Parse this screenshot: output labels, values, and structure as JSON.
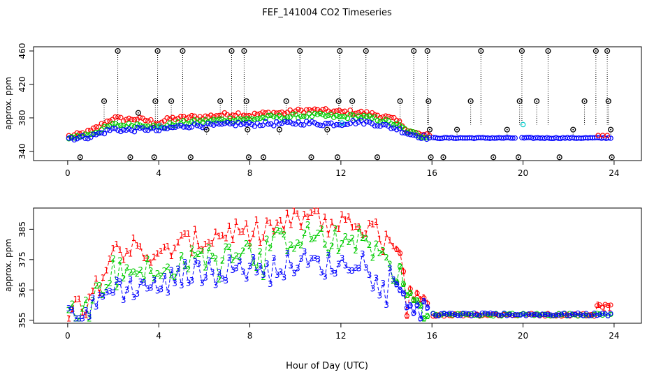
{
  "title": "FEF_141004  CO2 Timeseries",
  "xlabel": "Hour of Day (UTC)",
  "colors": {
    "series1": "#ff0000",
    "series2": "#00cc00",
    "series3": "#0000ff",
    "cyan": "#00cccc",
    "flag": "#000000"
  },
  "chart_data": [
    {
      "type": "scatter",
      "panel": "top",
      "ylabel": "approx. ppm",
      "xlim": [
        -1.5,
        25.2
      ],
      "ylim": [
        329,
        465
      ],
      "xticks": [
        0,
        4,
        8,
        12,
        16,
        20,
        24
      ],
      "yticks": [
        340,
        380,
        420,
        460
      ],
      "ytick_labels": [
        "340",
        "380",
        "420",
        "460"
      ],
      "xtick_labels": [
        "0",
        "4",
        "8",
        "12",
        "16",
        "20",
        "24"
      ],
      "grid": false,
      "legend": "none",
      "series_values": {
        "day_hours": [
          0.1,
          0.5,
          1.0,
          1.5,
          2.0,
          2.5,
          3.0,
          3.5,
          4.0,
          4.5,
          5.0,
          5.5,
          6.0,
          6.5,
          7.0,
          7.5,
          8.0,
          8.5,
          9.0,
          9.5,
          10.0,
          10.5,
          11.0,
          11.5,
          12.0,
          12.5,
          13.0,
          13.5,
          14.0,
          14.5,
          15.0,
          15.5,
          15.9
        ],
        "red": [
          358,
          360,
          364,
          372,
          380,
          378,
          379,
          377,
          374,
          379,
          380,
          381,
          381,
          383,
          384,
          385,
          383,
          385,
          386,
          386,
          388,
          389,
          389,
          388,
          387,
          387,
          386,
          384,
          381,
          376,
          364,
          360,
          358
        ],
        "green": [
          357,
          358,
          361,
          366,
          372,
          371,
          372,
          372,
          368,
          372,
          374,
          375,
          376,
          377,
          378,
          379,
          378,
          380,
          381,
          381,
          382,
          383,
          383,
          382,
          381,
          382,
          381,
          379,
          376,
          371,
          363,
          359,
          357
        ],
        "blue": [
          356,
          356,
          358,
          362,
          367,
          365,
          366,
          367,
          365,
          368,
          370,
          371,
          371,
          371,
          372,
          373,
          372,
          373,
          373,
          373,
          374,
          374,
          373,
          373,
          373,
          375,
          375,
          373,
          370,
          367,
          361,
          358,
          356
        ],
        "night_level": 356
      },
      "flag_points": [
        {
          "x": 0.55,
          "y": 333
        },
        {
          "x": 1.6,
          "y": 400
        },
        {
          "x": 2.2,
          "y": 460
        },
        {
          "x": 2.75,
          "y": 333
        },
        {
          "x": 3.1,
          "y": 386
        },
        {
          "x": 3.8,
          "y": 333
        },
        {
          "x": 3.85,
          "y": 400
        },
        {
          "x": 3.95,
          "y": 460
        },
        {
          "x": 4.55,
          "y": 400
        },
        {
          "x": 5.05,
          "y": 460
        },
        {
          "x": 5.4,
          "y": 333
        },
        {
          "x": 6.1,
          "y": 366
        },
        {
          "x": 6.7,
          "y": 400
        },
        {
          "x": 7.2,
          "y": 460
        },
        {
          "x": 7.75,
          "y": 460
        },
        {
          "x": 7.85,
          "y": 400
        },
        {
          "x": 7.9,
          "y": 366
        },
        {
          "x": 7.95,
          "y": 333
        },
        {
          "x": 8.6,
          "y": 333
        },
        {
          "x": 9.3,
          "y": 366
        },
        {
          "x": 9.6,
          "y": 400
        },
        {
          "x": 10.2,
          "y": 460
        },
        {
          "x": 10.7,
          "y": 333
        },
        {
          "x": 11.4,
          "y": 366
        },
        {
          "x": 11.9,
          "y": 400
        },
        {
          "x": 11.95,
          "y": 460
        },
        {
          "x": 11.85,
          "y": 333
        },
        {
          "x": 12.5,
          "y": 400
        },
        {
          "x": 13.1,
          "y": 460
        },
        {
          "x": 13.6,
          "y": 333
        },
        {
          "x": 14.6,
          "y": 400
        },
        {
          "x": 15.2,
          "y": 460
        },
        {
          "x": 15.8,
          "y": 460
        },
        {
          "x": 15.85,
          "y": 400
        },
        {
          "x": 15.9,
          "y": 366
        },
        {
          "x": 15.95,
          "y": 333
        },
        {
          "x": 16.5,
          "y": 333
        },
        {
          "x": 17.1,
          "y": 366
        },
        {
          "x": 17.7,
          "y": 400
        },
        {
          "x": 18.15,
          "y": 460
        },
        {
          "x": 18.7,
          "y": 333
        },
        {
          "x": 19.3,
          "y": 366
        },
        {
          "x": 19.85,
          "y": 400
        },
        {
          "x": 19.95,
          "y": 460
        },
        {
          "x": 19.8,
          "y": 333
        },
        {
          "x": 20.6,
          "y": 400
        },
        {
          "x": 21.1,
          "y": 460
        },
        {
          "x": 21.6,
          "y": 333
        },
        {
          "x": 22.2,
          "y": 366
        },
        {
          "x": 22.7,
          "y": 400
        },
        {
          "x": 23.2,
          "y": 460
        },
        {
          "x": 23.7,
          "y": 460
        },
        {
          "x": 23.75,
          "y": 400
        },
        {
          "x": 23.85,
          "y": 366
        },
        {
          "x": 23.9,
          "y": 333
        }
      ],
      "cyan_points": [
        {
          "x": 20.0,
          "y": 372
        },
        {
          "x": 12.05,
          "y": 374
        },
        {
          "x": 4.05,
          "y": 371
        }
      ]
    },
    {
      "type": "line",
      "panel": "bottom",
      "ylabel": "approx. ppm",
      "xlim": [
        -1.5,
        25.2
      ],
      "ylim": [
        354,
        392
      ],
      "xticks": [
        0,
        4,
        8,
        12,
        16,
        20,
        24
      ],
      "xtick_labels": [
        "0",
        "4",
        "8",
        "12",
        "16",
        "20",
        "24"
      ],
      "yticks": [
        355,
        365,
        375,
        385
      ],
      "ytick_labels": [
        "355",
        "365",
        "375",
        "385"
      ],
      "grid": false,
      "legend": "none",
      "series": [
        {
          "label": "1",
          "color": "#ff0000"
        },
        {
          "label": "2",
          "color": "#00cc00"
        },
        {
          "label": "3",
          "color": "#0000ff"
        }
      ],
      "tail_points": {
        "x": [
          23.3,
          23.55,
          23.8
        ],
        "y": [
          360,
          359,
          359
        ]
      }
    }
  ]
}
